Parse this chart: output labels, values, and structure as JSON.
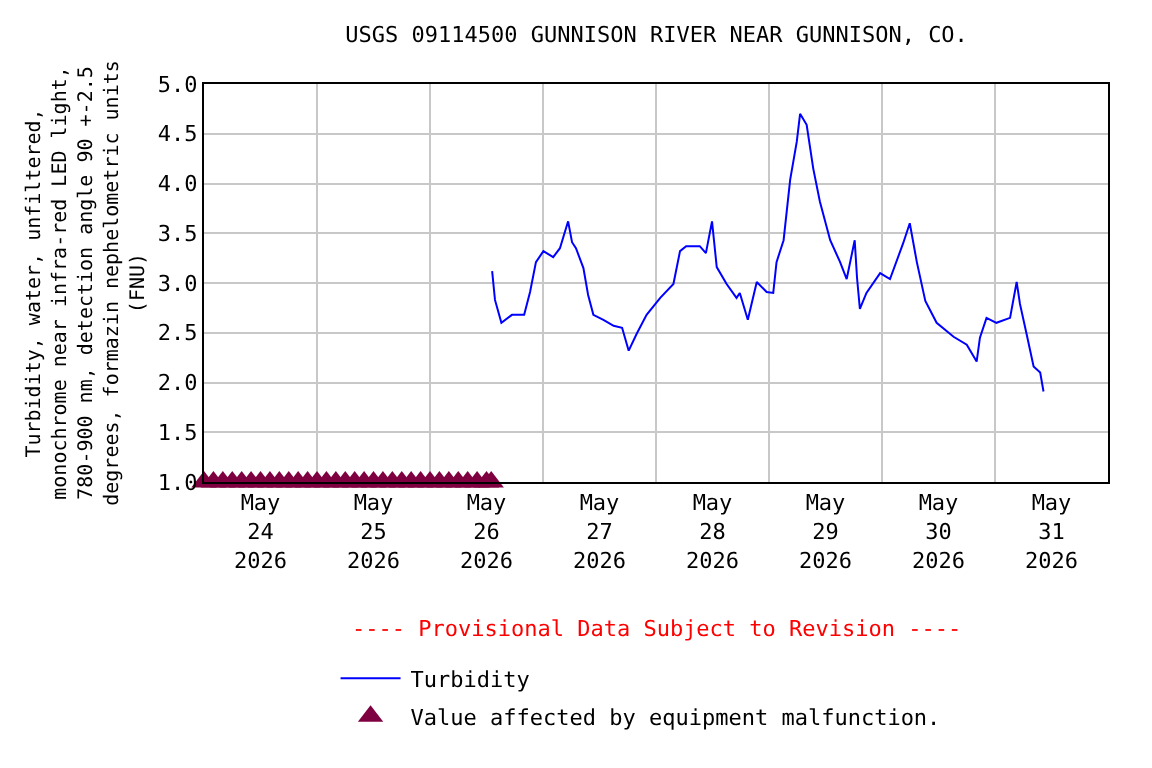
{
  "chart_data": {
    "type": "line",
    "title": "USGS 09114500 GUNNISON RIVER NEAR GUNNISON, CO.",
    "ylabel": "Turbidity, water, unfiltered,\nmonochrome near infra-red LED light,\n780-900 nm, detection angle 90 +-2.5\ndegrees, formazin nephelometric units\n(FNU)",
    "annotations": [
      "---- Provisional Data Subject to Revision ----"
    ],
    "xlim": [
      "2026-05-24T00:00",
      "2026-06-01T00:00"
    ],
    "xticks": [
      {
        "value": "2026-05-24T12:00",
        "label": "May\n24\n2026"
      },
      {
        "value": "2026-05-25T00:00",
        "label": null
      },
      {
        "value": "2026-05-25T12:00",
        "label": "May\n25\n2026"
      },
      {
        "value": "2026-05-26T00:00",
        "label": null
      },
      {
        "value": "2026-05-26T12:00",
        "label": "May\n26\n2026"
      },
      {
        "value": "2026-05-27T00:00",
        "label": null
      },
      {
        "value": "2026-05-27T12:00",
        "label": "May\n27\n2026"
      },
      {
        "value": "2026-05-28T00:00",
        "label": null
      },
      {
        "value": "2026-05-28T12:00",
        "label": "May\n28\n2026"
      },
      {
        "value": "2026-05-29T00:00",
        "label": null
      },
      {
        "value": "2026-05-29T12:00",
        "label": "May\n29\n2026"
      },
      {
        "value": "2026-05-30T00:00",
        "label": null
      },
      {
        "value": "2026-05-30T12:00",
        "label": "May\n30\n2026"
      },
      {
        "value": "2026-05-31T00:00",
        "label": null
      },
      {
        "value": "2026-05-31T12:00",
        "label": "May\n31\n2026"
      }
    ],
    "ylim": [
      1.0,
      5.0
    ],
    "yticks": [
      {
        "value": 1.0,
        "label": "1.0"
      },
      {
        "value": 1.5,
        "label": "1.5"
      },
      {
        "value": 2.0,
        "label": "2.0"
      },
      {
        "value": 2.5,
        "label": "2.5"
      },
      {
        "value": 3.0,
        "label": "3.0"
      },
      {
        "value": 3.5,
        "label": "3.5"
      },
      {
        "value": 4.0,
        "label": "4.0"
      },
      {
        "value": 4.5,
        "label": "4.5"
      },
      {
        "value": 5.0,
        "label": "5.0"
      }
    ],
    "grid": true,
    "legend": "bottom",
    "series": [
      {
        "name": "Turbidity",
        "color": "#0000ff",
        "marker": "none",
        "line_style": "solid",
        "x": [
          "2026-05-26T13:12",
          "2026-05-26T13:48",
          "2026-05-26T15:10",
          "2026-05-26T17:25",
          "2026-05-26T20:00",
          "2026-05-26T21:15",
          "2026-05-26T22:30",
          "2026-05-27T00:05",
          "2026-05-27T02:10",
          "2026-05-27T03:36",
          "2026-05-27T05:20",
          "2026-05-27T06:10",
          "2026-05-27T07:00",
          "2026-05-27T08:35",
          "2026-05-27T09:35",
          "2026-05-27T10:42",
          "2026-05-27T12:50",
          "2026-05-27T15:00",
          "2026-05-27T16:48",
          "2026-05-27T18:12",
          "2026-05-27T19:54",
          "2026-05-27T22:00",
          "2026-05-28T00:54",
          "2026-05-28T03:42",
          "2026-05-28T05:06",
          "2026-05-28T06:24",
          "2026-05-28T09:18",
          "2026-05-28T10:36",
          "2026-05-28T11:54",
          "2026-05-28T12:54",
          "2026-05-28T15:00",
          "2026-05-28T17:06",
          "2026-05-28T17:48",
          "2026-05-28T19:30",
          "2026-05-28T21:24",
          "2026-05-28T23:30",
          "2026-05-29T00:54",
          "2026-05-29T01:36",
          "2026-05-29T03:06",
          "2026-05-29T04:30",
          "2026-05-29T05:54",
          "2026-05-29T06:36",
          "2026-05-29T08:00",
          "2026-05-29T09:24",
          "2026-05-29T10:48",
          "2026-05-29T13:00",
          "2026-05-29T15:06",
          "2026-05-29T16:30",
          "2026-05-29T18:12",
          "2026-05-29T18:42",
          "2026-05-29T19:18",
          "2026-05-29T20:42",
          "2026-05-29T23:36",
          "2026-05-30T01:42",
          "2026-05-30T04:30",
          "2026-05-30T05:54",
          "2026-05-30T07:24",
          "2026-05-30T09:12",
          "2026-05-30T11:36",
          "2026-05-30T15:12",
          "2026-05-30T18:00",
          "2026-05-30T20:06",
          "2026-05-30T20:48",
          "2026-05-30T22:12",
          "2026-05-31T00:18",
          "2026-05-31T03:12",
          "2026-05-31T04:36",
          "2026-05-31T05:18",
          "2026-05-31T06:42",
          "2026-05-31T08:12",
          "2026-05-31T09:36",
          "2026-05-31T10:18"
        ],
        "values": [
          3.12,
          2.83,
          2.6,
          2.68,
          2.68,
          2.91,
          3.21,
          3.32,
          3.26,
          3.35,
          3.62,
          3.41,
          3.35,
          3.15,
          2.88,
          2.68,
          2.63,
          2.57,
          2.55,
          2.32,
          2.49,
          2.68,
          2.85,
          2.99,
          3.32,
          3.37,
          3.37,
          3.3,
          3.62,
          3.16,
          2.99,
          2.85,
          2.9,
          2.63,
          3.01,
          2.91,
          2.9,
          3.21,
          3.43,
          4.04,
          4.42,
          4.7,
          4.59,
          4.15,
          3.82,
          3.43,
          3.21,
          3.04,
          3.43,
          3.05,
          2.74,
          2.9,
          3.1,
          3.04,
          3.4,
          3.6,
          3.21,
          2.82,
          2.6,
          2.46,
          2.38,
          2.21,
          2.45,
          2.65,
          2.6,
          2.65,
          3.01,
          2.79,
          2.49,
          2.16,
          2.1,
          1.91
        ]
      },
      {
        "name": "Value affected by equipment malfunction.",
        "type": "scatter",
        "color": "#7f0040",
        "marker": "triangle",
        "x": [
          "2026-05-24T00:00",
          "2026-05-24T02:00",
          "2026-05-24T04:00",
          "2026-05-24T06:00",
          "2026-05-24T08:00",
          "2026-05-24T10:00",
          "2026-05-24T12:00",
          "2026-05-24T14:00",
          "2026-05-24T16:00",
          "2026-05-24T18:00",
          "2026-05-24T20:00",
          "2026-05-24T22:00",
          "2026-05-25T00:00",
          "2026-05-25T02:00",
          "2026-05-25T04:00",
          "2026-05-25T06:00",
          "2026-05-25T08:00",
          "2026-05-25T10:00",
          "2026-05-25T12:00",
          "2026-05-25T14:00",
          "2026-05-25T16:00",
          "2026-05-25T18:00",
          "2026-05-25T20:00",
          "2026-05-25T22:00",
          "2026-05-26T00:00",
          "2026-05-26T02:00",
          "2026-05-26T04:00",
          "2026-05-26T06:00",
          "2026-05-26T08:00",
          "2026-05-26T10:00",
          "2026-05-26T12:00",
          "2026-05-26T13:00"
        ],
        "values": [
          1.0,
          1.0,
          1.0,
          1.0,
          1.0,
          1.0,
          1.0,
          1.0,
          1.0,
          1.0,
          1.0,
          1.0,
          1.0,
          1.0,
          1.0,
          1.0,
          1.0,
          1.0,
          1.0,
          1.0,
          1.0,
          1.0,
          1.0,
          1.0,
          1.0,
          1.0,
          1.0,
          1.0,
          1.0,
          1.0,
          1.0,
          1.0
        ]
      }
    ]
  }
}
